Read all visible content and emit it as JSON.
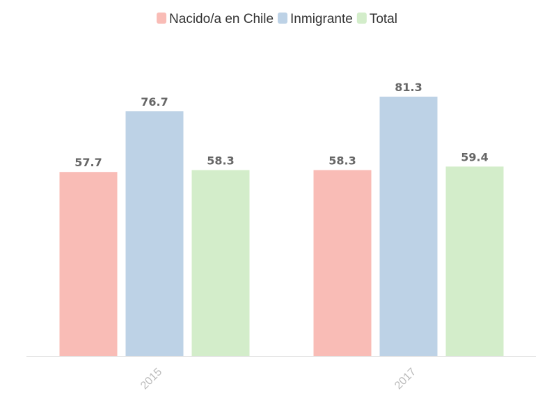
{
  "chart_data": {
    "type": "bar",
    "categories": [
      "2015",
      "2017"
    ],
    "series": [
      {
        "name": "Nacido/a en Chile",
        "values": [
          57.7,
          58.3
        ],
        "color": "#f9bcb6"
      },
      {
        "name": "Inmigrante",
        "values": [
          76.7,
          81.3
        ],
        "color": "#bdd2e6"
      },
      {
        "name": "Total",
        "values": [
          58.3,
          59.4
        ],
        "color": "#d3edca"
      }
    ],
    "value_labels": [
      [
        "57.7",
        "58.3"
      ],
      [
        "76.7",
        "81.3"
      ],
      [
        "58.3",
        "59.4"
      ]
    ],
    "ylim": [
      0,
      100
    ],
    "legend_position": "top-center",
    "grid": false,
    "axis_color": "#e6e6e6",
    "tick_label_color": "#bbbbbb",
    "value_label_color": "#666666"
  }
}
